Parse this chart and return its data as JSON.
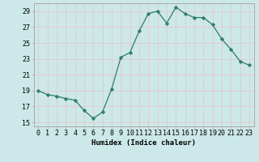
{
  "x": [
    0,
    1,
    2,
    3,
    4,
    5,
    6,
    7,
    8,
    9,
    10,
    11,
    12,
    13,
    14,
    15,
    16,
    17,
    18,
    19,
    20,
    21,
    22,
    23
  ],
  "y": [
    19.0,
    18.5,
    18.3,
    18.0,
    17.8,
    16.5,
    15.5,
    16.3,
    19.2,
    23.2,
    23.8,
    26.5,
    28.7,
    29.0,
    27.5,
    29.5,
    28.7,
    28.2,
    28.2,
    27.3,
    25.5,
    24.2,
    22.7,
    22.2
  ],
  "line_color": "#2e7d6b",
  "marker": "D",
  "marker_size": 2.2,
  "bg_color": "#cce8e8",
  "grid_color": "#e8c8c8",
  "xlabel": "Humidex (Indice chaleur)",
  "xlim": [
    -0.5,
    23.5
  ],
  "ylim": [
    14.5,
    30.0
  ],
  "yticks": [
    15,
    17,
    19,
    21,
    23,
    25,
    27,
    29
  ],
  "xticks": [
    0,
    1,
    2,
    3,
    4,
    5,
    6,
    7,
    8,
    9,
    10,
    11,
    12,
    13,
    14,
    15,
    16,
    17,
    18,
    19,
    20,
    21,
    22,
    23
  ],
  "label_fontsize": 6.5,
  "tick_fontsize": 6.0
}
